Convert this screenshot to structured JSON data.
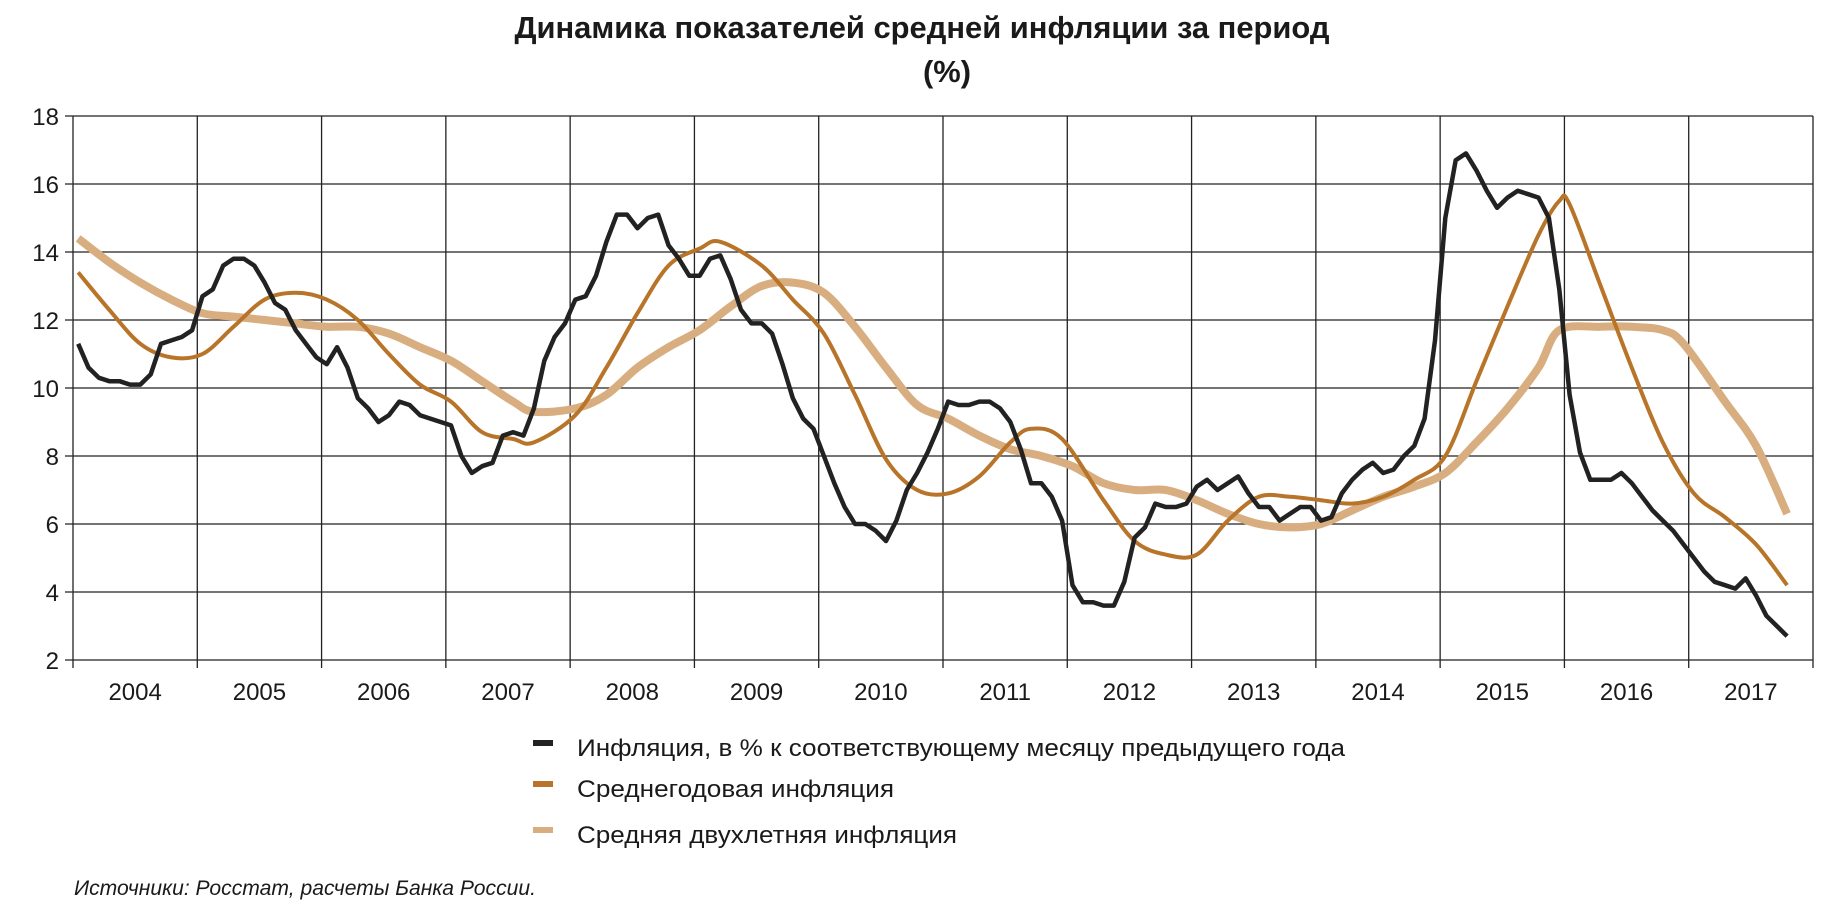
{
  "chart_data": {
    "type": "line",
    "title": "Динамика показателей средней инфляции за период",
    "subtitle": "(%)",
    "xlabel": "",
    "ylabel": "",
    "ylim": [
      2,
      18
    ],
    "yticks": [
      "2",
      "4",
      "6",
      "8",
      "10",
      "12",
      "14",
      "16",
      "18"
    ],
    "xlim": [
      2004,
      2018
    ],
    "xticks": [
      "2004",
      "2005",
      "2006",
      "2007",
      "2008",
      "2009",
      "2010",
      "2011",
      "2012",
      "2013",
      "2014",
      "2015",
      "2016",
      "2017"
    ],
    "grid": true,
    "legend_position": "bottom",
    "source": "Источники: Росстат, расчеты Банка России.",
    "series": [
      {
        "name": "Инфляция, в % к соответствующему месяцу предыдущего года",
        "color": "#222222",
        "style": "monthly",
        "start": "2004-01",
        "values": [
          11.3,
          10.6,
          10.3,
          10.2,
          10.2,
          10.1,
          10.1,
          10.4,
          11.3,
          11.4,
          11.5,
          11.7,
          12.7,
          12.9,
          13.6,
          13.8,
          13.8,
          13.6,
          13.1,
          12.5,
          12.3,
          11.7,
          11.3,
          10.9,
          10.7,
          11.2,
          10.6,
          9.7,
          9.4,
          9.0,
          9.2,
          9.6,
          9.5,
          9.2,
          9.1,
          9.0,
          8.9,
          8.0,
          7.5,
          7.7,
          7.8,
          8.6,
          8.7,
          8.6,
          9.4,
          10.8,
          11.5,
          11.9,
          12.6,
          12.7,
          13.3,
          14.3,
          15.1,
          15.1,
          14.7,
          15.0,
          15.1,
          14.2,
          13.8,
          13.3,
          13.3,
          13.8,
          13.9,
          13.2,
          12.3,
          11.9,
          11.9,
          11.6,
          10.7,
          9.7,
          9.1,
          8.8,
          8.0,
          7.2,
          6.5,
          6.0,
          6.0,
          5.8,
          5.5,
          6.1,
          7.0,
          7.5,
          8.1,
          8.8,
          9.6,
          9.5,
          9.5,
          9.6,
          9.6,
          9.4,
          9.0,
          8.2,
          7.2,
          7.2,
          6.8,
          6.1,
          4.2,
          3.7,
          3.7,
          3.6,
          3.6,
          4.3,
          5.6,
          5.9,
          6.6,
          6.5,
          6.5,
          6.6,
          7.1,
          7.3,
          7.0,
          7.2,
          7.4,
          6.9,
          6.5,
          6.5,
          6.1,
          6.3,
          6.5,
          6.5,
          6.1,
          6.2,
          6.9,
          7.3,
          7.6,
          7.8,
          7.5,
          7.6,
          8.0,
          8.3,
          9.1,
          11.4,
          15.0,
          16.7,
          16.9,
          16.4,
          15.8,
          15.3,
          15.6,
          15.8,
          15.7,
          15.6,
          15.0,
          12.9,
          9.8,
          8.1,
          7.3,
          7.3,
          7.3,
          7.5,
          7.2,
          6.8,
          6.4,
          6.1,
          5.8,
          5.4,
          5.0,
          4.6,
          4.3,
          4.2,
          4.1,
          4.4,
          3.9,
          3.3,
          3.0,
          2.7
        ]
      },
      {
        "name": "Среднегодовая инфляция",
        "color": "#b87428",
        "style": "smooth",
        "points": [
          [
            "2004-01",
            13.4
          ],
          [
            "2004-04",
            12.3
          ],
          [
            "2004-07",
            11.3
          ],
          [
            "2004-10",
            10.9
          ],
          [
            "2005-01",
            11.0
          ],
          [
            "2005-04",
            11.8
          ],
          [
            "2005-07",
            12.6
          ],
          [
            "2005-10",
            12.8
          ],
          [
            "2006-01",
            12.6
          ],
          [
            "2006-04",
            12.0
          ],
          [
            "2006-07",
            11.0
          ],
          [
            "2006-10",
            10.1
          ],
          [
            "2007-01",
            9.6
          ],
          [
            "2007-04",
            8.7
          ],
          [
            "2007-07",
            8.5
          ],
          [
            "2007-09",
            8.4
          ],
          [
            "2008-01",
            9.2
          ],
          [
            "2008-04",
            10.6
          ],
          [
            "2008-07",
            12.2
          ],
          [
            "2008-10",
            13.6
          ],
          [
            "2009-01",
            14.1
          ],
          [
            "2009-03",
            14.3
          ],
          [
            "2009-07",
            13.6
          ],
          [
            "2009-10",
            12.6
          ],
          [
            "2010-01",
            11.6
          ],
          [
            "2010-04",
            9.8
          ],
          [
            "2010-07",
            7.9
          ],
          [
            "2010-10",
            7.0
          ],
          [
            "2011-01",
            6.9
          ],
          [
            "2011-04",
            7.4
          ],
          [
            "2011-07",
            8.4
          ],
          [
            "2011-09",
            8.8
          ],
          [
            "2011-12",
            8.5
          ],
          [
            "2012-04",
            6.7
          ],
          [
            "2012-07",
            5.5
          ],
          [
            "2012-10",
            5.1
          ],
          [
            "2013-01",
            5.1
          ],
          [
            "2013-04",
            6.1
          ],
          [
            "2013-07",
            6.8
          ],
          [
            "2013-10",
            6.8
          ],
          [
            "2014-01",
            6.7
          ],
          [
            "2014-04",
            6.6
          ],
          [
            "2014-07",
            6.8
          ],
          [
            "2014-10",
            7.3
          ],
          [
            "2015-01",
            8.0
          ],
          [
            "2015-04",
            10.2
          ],
          [
            "2015-07",
            12.4
          ],
          [
            "2015-10",
            14.5
          ],
          [
            "2015-12",
            15.5
          ],
          [
            "2016-01",
            15.4
          ],
          [
            "2016-04",
            13.0
          ],
          [
            "2016-07",
            10.6
          ],
          [
            "2016-10",
            8.4
          ],
          [
            "2017-01",
            6.9
          ],
          [
            "2017-04",
            6.2
          ],
          [
            "2017-07",
            5.4
          ],
          [
            "2017-10",
            4.2
          ]
        ]
      },
      {
        "name": "Средняя двухлетняя инфляция",
        "color": "#d8ae80",
        "style": "smooth",
        "points": [
          [
            "2004-01",
            14.4
          ],
          [
            "2004-04",
            13.7
          ],
          [
            "2004-07",
            13.1
          ],
          [
            "2004-10",
            12.6
          ],
          [
            "2005-01",
            12.2
          ],
          [
            "2005-04",
            12.1
          ],
          [
            "2005-07",
            12.0
          ],
          [
            "2005-10",
            11.9
          ],
          [
            "2006-01",
            11.8
          ],
          [
            "2006-04",
            11.8
          ],
          [
            "2006-07",
            11.6
          ],
          [
            "2006-10",
            11.2
          ],
          [
            "2007-01",
            10.8
          ],
          [
            "2007-04",
            10.2
          ],
          [
            "2007-07",
            9.6
          ],
          [
            "2007-09",
            9.3
          ],
          [
            "2008-01",
            9.4
          ],
          [
            "2008-04",
            9.8
          ],
          [
            "2008-07",
            10.6
          ],
          [
            "2008-10",
            11.2
          ],
          [
            "2009-01",
            11.7
          ],
          [
            "2009-04",
            12.4
          ],
          [
            "2009-07",
            13.0
          ],
          [
            "2009-10",
            13.1
          ],
          [
            "2010-01",
            12.8
          ],
          [
            "2010-04",
            11.8
          ],
          [
            "2010-07",
            10.6
          ],
          [
            "2010-10",
            9.5
          ],
          [
            "2011-01",
            9.1
          ],
          [
            "2011-04",
            8.6
          ],
          [
            "2011-07",
            8.2
          ],
          [
            "2011-10",
            8.0
          ],
          [
            "2012-01",
            7.7
          ],
          [
            "2012-04",
            7.2
          ],
          [
            "2012-07",
            7.0
          ],
          [
            "2012-10",
            7.0
          ],
          [
            "2013-01",
            6.7
          ],
          [
            "2013-04",
            6.3
          ],
          [
            "2013-07",
            6.0
          ],
          [
            "2013-10",
            5.9
          ],
          [
            "2014-01",
            6.0
          ],
          [
            "2014-04",
            6.4
          ],
          [
            "2014-07",
            6.8
          ],
          [
            "2014-10",
            7.1
          ],
          [
            "2015-01",
            7.5
          ],
          [
            "2015-04",
            8.4
          ],
          [
            "2015-07",
            9.4
          ],
          [
            "2015-10",
            10.6
          ],
          [
            "2015-12",
            11.7
          ],
          [
            "2016-04",
            11.8
          ],
          [
            "2016-07",
            11.8
          ],
          [
            "2016-10",
            11.7
          ],
          [
            "2016-12",
            11.3
          ],
          [
            "2017-04",
            9.6
          ],
          [
            "2017-07",
            8.3
          ],
          [
            "2017-10",
            6.3
          ]
        ]
      }
    ]
  }
}
